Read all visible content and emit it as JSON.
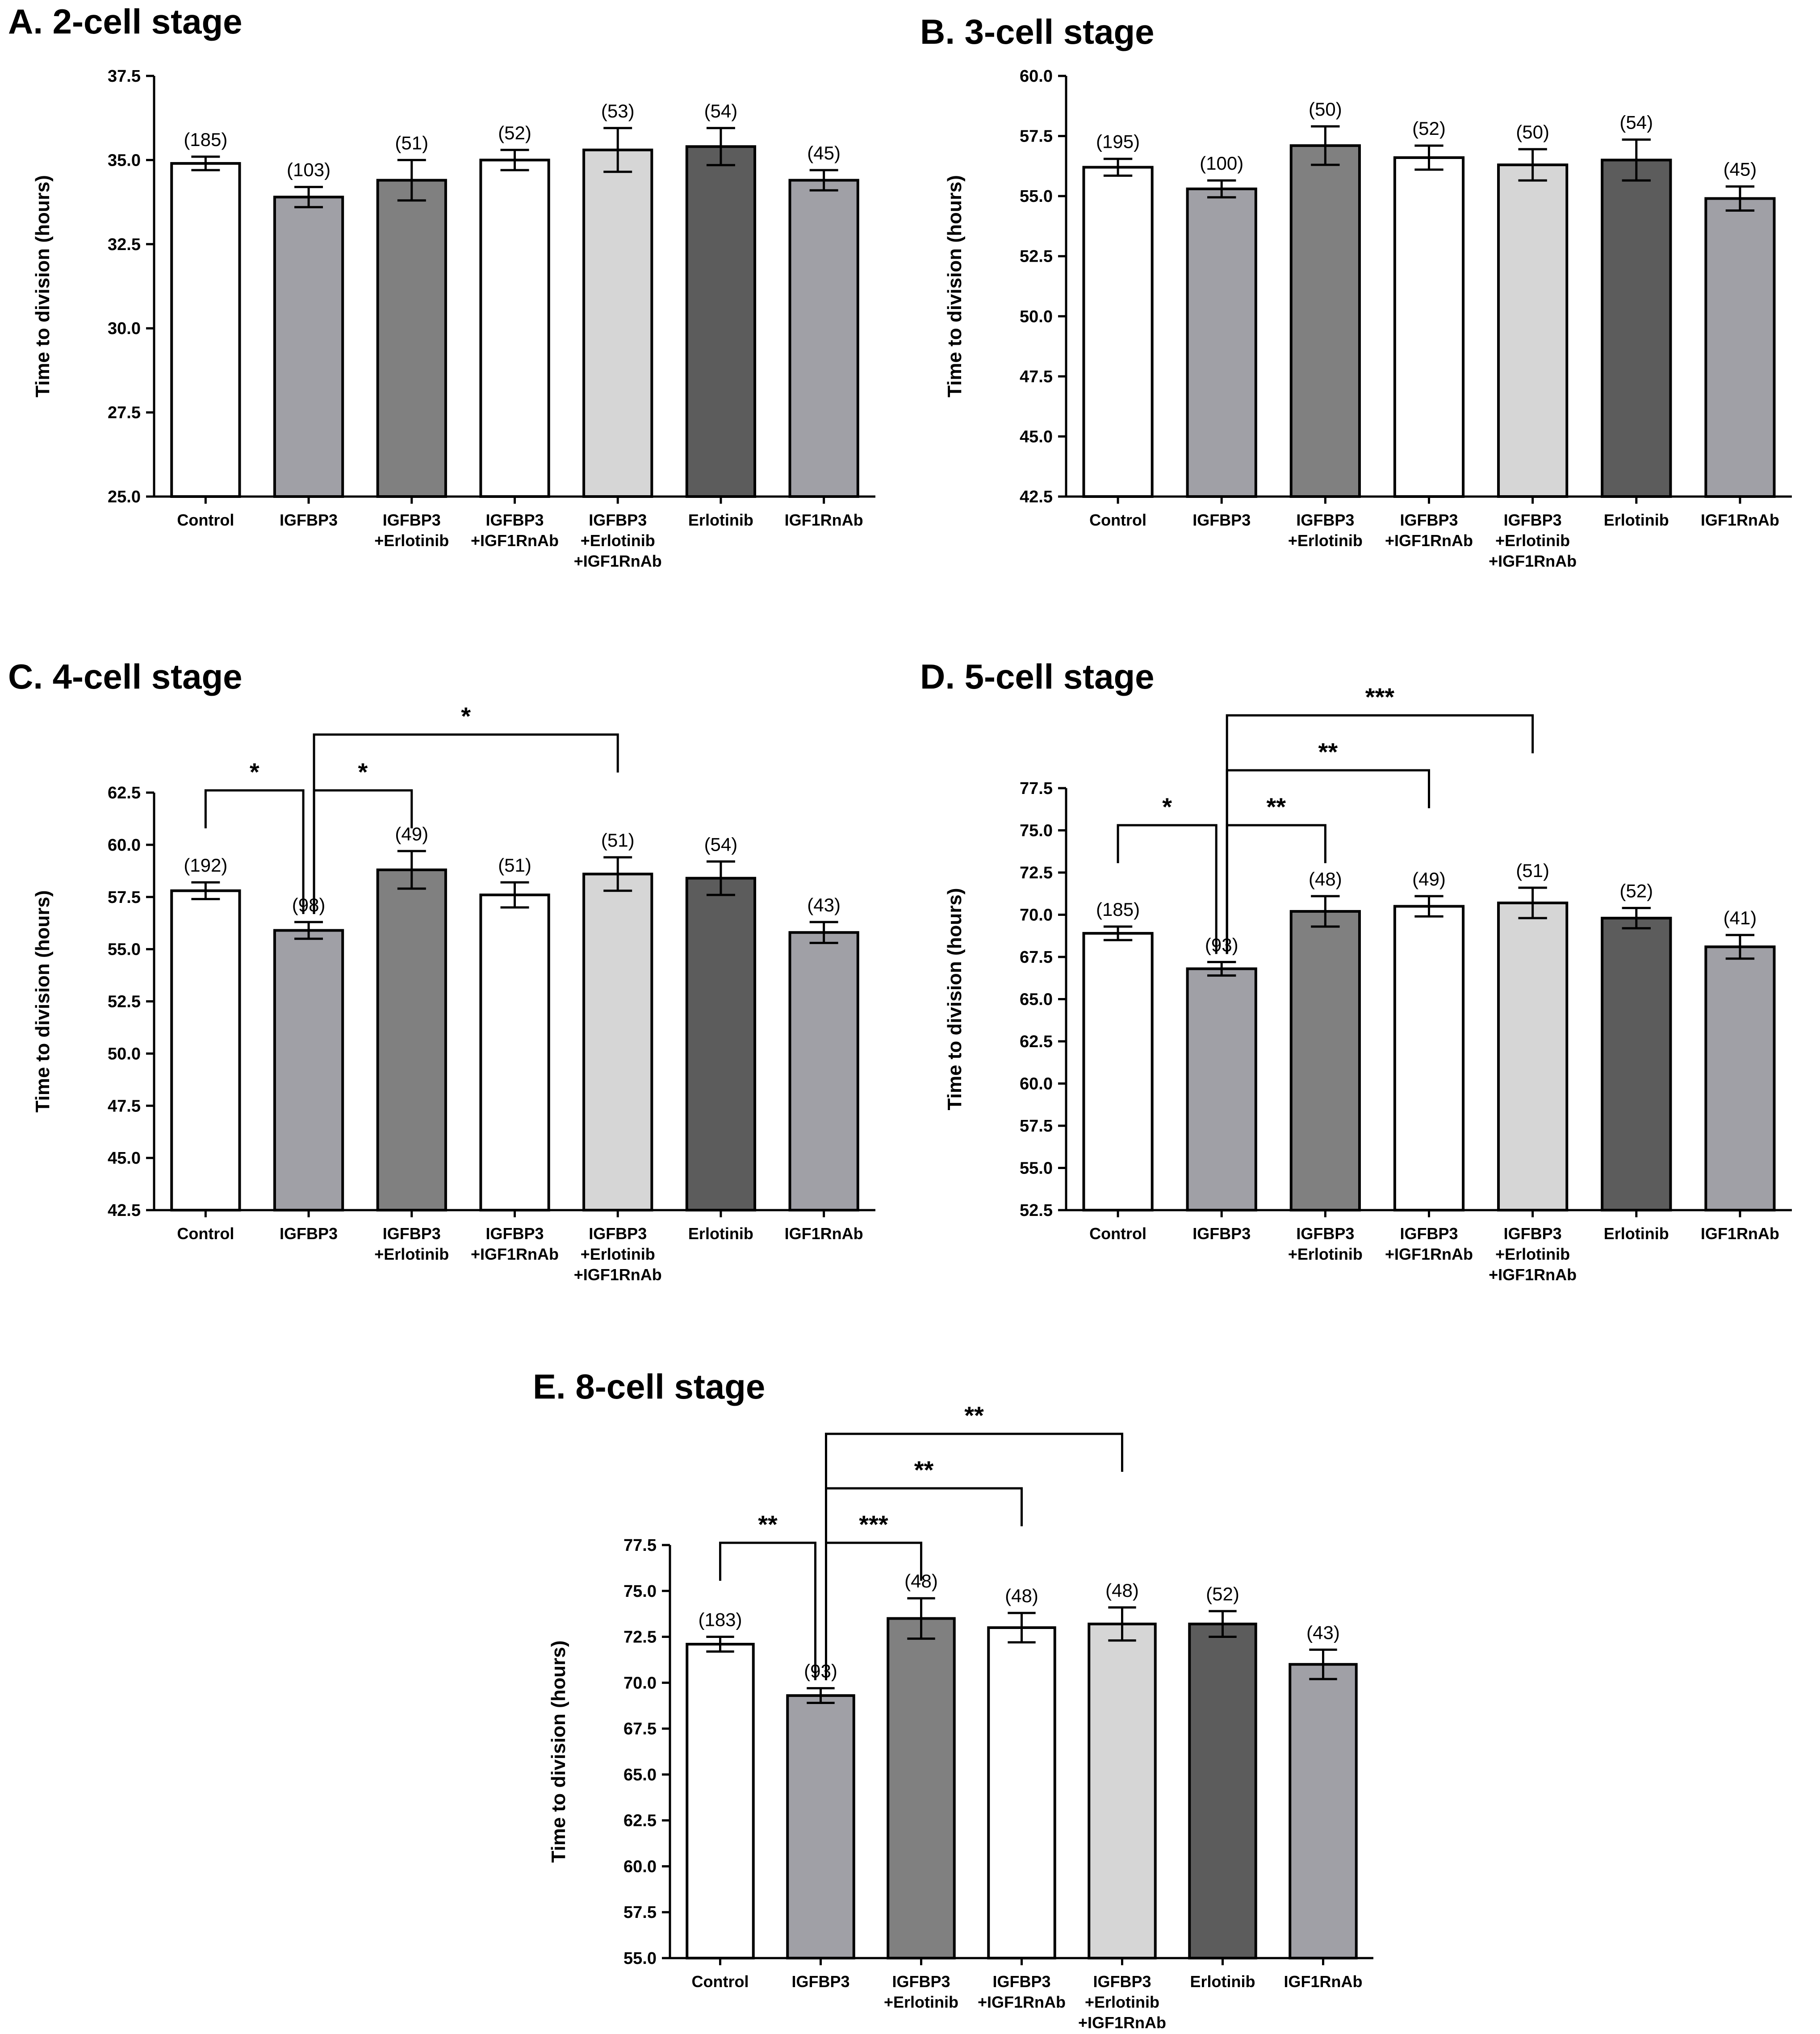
{
  "colors": {
    "white": "#ffffff",
    "gray_mid": "#a0a0a6",
    "gray_dark": "#808080",
    "gray_light": "#d6d6d6",
    "gray_darkest": "#5c5c5c"
  },
  "chart_data": [
    {
      "panel": "A",
      "title": "A. 2-cell stage",
      "type": "bar",
      "ylabel": "Time to division (hours)",
      "ylim": [
        25.0,
        37.5
      ],
      "yticks": [
        "25.0",
        "27.5",
        "30.0",
        "32.5",
        "35.0",
        "37.5"
      ],
      "categories": [
        [
          "Control"
        ],
        [
          "IGFBP3"
        ],
        [
          "IGFBP3",
          "+Erlotinib"
        ],
        [
          "IGFBP3",
          "+IGF1RnAb"
        ],
        [
          "IGFBP3",
          "+Erlotinib",
          "+IGF1RnAb"
        ],
        [
          "Erlotinib"
        ],
        [
          "IGF1RnAb"
        ]
      ],
      "values": [
        34.9,
        33.9,
        34.4,
        35.0,
        35.3,
        35.4,
        34.4
      ],
      "errors": [
        0.2,
        0.3,
        0.6,
        0.3,
        0.65,
        0.55,
        0.3
      ],
      "n_labels": [
        "(185)",
        "(103)",
        "(51)",
        "(52)",
        "(53)",
        "(54)",
        "(45)"
      ],
      "significance": []
    },
    {
      "panel": "B",
      "title": "B. 3-cell stage",
      "type": "bar",
      "ylabel": "Time to division (hours)",
      "ylim": [
        42.5,
        60.0
      ],
      "yticks": [
        "42.5",
        "45.0",
        "47.5",
        "50.0",
        "52.5",
        "55.0",
        "57.5",
        "60.0"
      ],
      "categories": [
        [
          "Control"
        ],
        [
          "IGFBP3"
        ],
        [
          "IGFBP3",
          "+Erlotinib"
        ],
        [
          "IGFBP3",
          "+IGF1RnAb"
        ],
        [
          "IGFBP3",
          "+Erlotinib",
          "+IGF1RnAb"
        ],
        [
          "Erlotinib"
        ],
        [
          "IGF1RnAb"
        ]
      ],
      "values": [
        56.2,
        55.3,
        57.1,
        56.6,
        56.3,
        56.5,
        54.9
      ],
      "errors": [
        0.35,
        0.35,
        0.8,
        0.5,
        0.65,
        0.85,
        0.5
      ],
      "n_labels": [
        "(195)",
        "(100)",
        "(50)",
        "(52)",
        "(50)",
        "(54)",
        "(45)"
      ],
      "significance": []
    },
    {
      "panel": "C",
      "title": "C. 4-cell stage",
      "type": "bar",
      "ylabel": "Time to division (hours)",
      "ylim": [
        42.5,
        62.5
      ],
      "yticks": [
        "42.5",
        "45.0",
        "47.5",
        "50.0",
        "52.5",
        "55.0",
        "57.5",
        "60.0",
        "62.5"
      ],
      "categories": [
        [
          "Control"
        ],
        [
          "IGFBP3"
        ],
        [
          "IGFBP3",
          "+Erlotinib"
        ],
        [
          "IGFBP3",
          "+IGF1RnAb"
        ],
        [
          "IGFBP3",
          "+Erlotinib",
          "+IGF1RnAb"
        ],
        [
          "Erlotinib"
        ],
        [
          "IGF1RnAb"
        ]
      ],
      "values": [
        57.8,
        55.9,
        58.8,
        57.6,
        58.6,
        58.4,
        55.8
      ],
      "errors": [
        0.4,
        0.4,
        0.9,
        0.6,
        0.8,
        0.8,
        0.5
      ],
      "n_labels": [
        "(192)",
        "(98)",
        "(49)",
        "(51)",
        "(51)",
        "(54)",
        "(43)"
      ],
      "significance": [
        {
          "from": 0,
          "to": 1,
          "label": "*",
          "level": 1
        },
        {
          "from": 1,
          "to": 2,
          "label": "*",
          "level": 1
        },
        {
          "from": 1,
          "to": 4,
          "label": "*",
          "level": 2
        }
      ]
    },
    {
      "panel": "D",
      "title": "D. 5-cell stage",
      "type": "bar",
      "ylabel": "Time to division (hours)",
      "ylim": [
        52.5,
        77.5
      ],
      "yticks": [
        "52.5",
        "55.0",
        "57.5",
        "60.0",
        "62.5",
        "65.0",
        "67.5",
        "70.0",
        "72.5",
        "75.0",
        "77.5"
      ],
      "categories": [
        [
          "Control"
        ],
        [
          "IGFBP3"
        ],
        [
          "IGFBP3",
          "+Erlotinib"
        ],
        [
          "IGFBP3",
          "+IGF1RnAb"
        ],
        [
          "IGFBP3",
          "+Erlotinib",
          "+IGF1RnAb"
        ],
        [
          "Erlotinib"
        ],
        [
          "IGF1RnAb"
        ]
      ],
      "values": [
        68.9,
        66.8,
        70.2,
        70.5,
        70.7,
        69.8,
        68.1
      ],
      "errors": [
        0.4,
        0.4,
        0.9,
        0.6,
        0.9,
        0.6,
        0.7
      ],
      "n_labels": [
        "(185)",
        "(93)",
        "(48)",
        "(49)",
        "(51)",
        "(52)",
        "(41)"
      ],
      "significance": [
        {
          "from": 0,
          "to": 1,
          "label": "*",
          "level": 1
        },
        {
          "from": 1,
          "to": 2,
          "label": "**",
          "level": 1
        },
        {
          "from": 1,
          "to": 3,
          "label": "**",
          "level": 2
        },
        {
          "from": 1,
          "to": 4,
          "label": "***",
          "level": 3
        }
      ]
    },
    {
      "panel": "E",
      "title": "E. 8-cell stage",
      "type": "bar",
      "ylabel": "Time to division (hours)",
      "ylim": [
        55.0,
        77.5
      ],
      "yticks": [
        "55.0",
        "57.5",
        "60.0",
        "62.5",
        "65.0",
        "67.5",
        "70.0",
        "72.5",
        "75.0",
        "77.5"
      ],
      "categories": [
        [
          "Control"
        ],
        [
          "IGFBP3"
        ],
        [
          "IGFBP3",
          "+Erlotinib"
        ],
        [
          "IGFBP3",
          "+IGF1RnAb"
        ],
        [
          "IGFBP3",
          "+Erlotinib",
          "+IGF1RnAb"
        ],
        [
          "Erlotinib"
        ],
        [
          "IGF1RnAb"
        ]
      ],
      "values": [
        72.1,
        69.3,
        73.5,
        73.0,
        73.2,
        73.2,
        71.0
      ],
      "errors": [
        0.4,
        0.4,
        1.1,
        0.8,
        0.9,
        0.7,
        0.8
      ],
      "n_labels": [
        "(183)",
        "(93)",
        "(48)",
        "(48)",
        "(48)",
        "(52)",
        "(43)"
      ],
      "significance": [
        {
          "from": 0,
          "to": 1,
          "label": "**",
          "level": 1
        },
        {
          "from": 1,
          "to": 2,
          "label": "***",
          "level": 1
        },
        {
          "from": 1,
          "to": 3,
          "label": "**",
          "level": 2
        },
        {
          "from": 1,
          "to": 4,
          "label": "**",
          "level": 3
        }
      ]
    }
  ]
}
